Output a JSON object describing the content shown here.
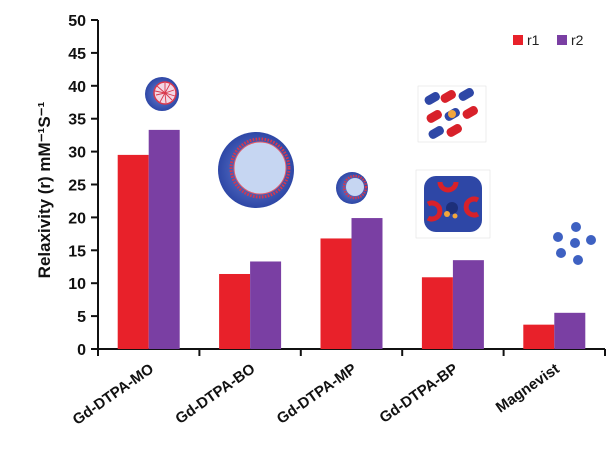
{
  "chart_data": {
    "type": "bar",
    "categories": [
      "Gd-DTPA-MO",
      "Gd-DTPA-BO",
      "Gd-DTPA-MP",
      "Gd-DTPA-BP",
      "Magnevist"
    ],
    "series": [
      {
        "name": "r1",
        "values": [
          29.5,
          11.4,
          16.8,
          10.9,
          3.7
        ],
        "color": "#e8212a"
      },
      {
        "name": "r2",
        "values": [
          33.3,
          13.3,
          19.9,
          13.5,
          5.5
        ],
        "color": "#7a3fa3"
      }
    ],
    "title": "",
    "xlabel": "",
    "ylabel": "Relaxivity (r) mM⁻¹S⁻¹",
    "ylim": [
      0,
      50
    ],
    "yticks": [
      0,
      5,
      10,
      15,
      20,
      25,
      30,
      35,
      40,
      45,
      50
    ],
    "grid": false,
    "legend_position": "top-right",
    "illustrations": [
      "micelle-icon",
      "large-vesicle-icon",
      "small-vesicle-icon",
      "mesoporous-rods-icon",
      "mesoporous-particle-icon",
      "molecule-cluster-icon"
    ]
  }
}
